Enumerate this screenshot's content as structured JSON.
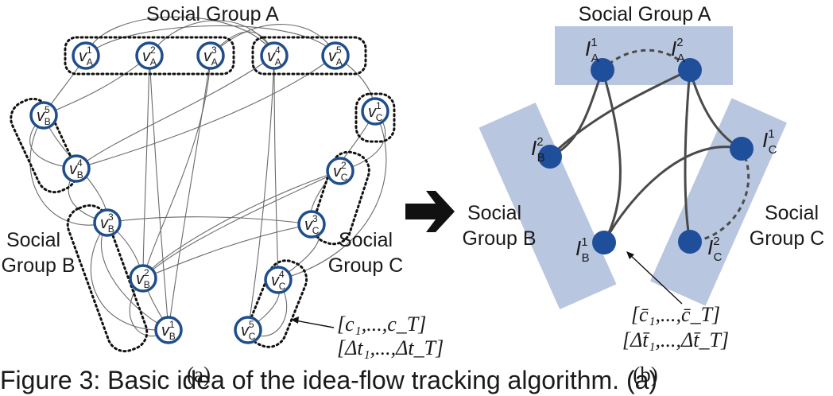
{
  "panel_a": {
    "group_a_label": "Social Group A",
    "group_b_label": [
      "Social",
      "Group B"
    ],
    "group_c_label": [
      "Social",
      "Group C"
    ],
    "node_base": "v",
    "nodes": [
      {
        "id": "A1",
        "sub": "A",
        "sup": "1"
      },
      {
        "id": "A2",
        "sub": "A",
        "sup": "2"
      },
      {
        "id": "A3",
        "sub": "A",
        "sup": "3"
      },
      {
        "id": "A4",
        "sub": "A",
        "sup": "4"
      },
      {
        "id": "A5",
        "sub": "A",
        "sup": "5"
      },
      {
        "id": "B5",
        "sub": "B",
        "sup": "5"
      },
      {
        "id": "B4",
        "sub": "B",
        "sup": "4"
      },
      {
        "id": "B3",
        "sub": "B",
        "sup": "3"
      },
      {
        "id": "B2",
        "sub": "B",
        "sup": "2"
      },
      {
        "id": "B1",
        "sub": "B",
        "sup": "1"
      },
      {
        "id": "C1",
        "sub": "C",
        "sup": "1"
      },
      {
        "id": "C2",
        "sub": "C",
        "sup": "2"
      },
      {
        "id": "C3",
        "sub": "C",
        "sup": "3"
      },
      {
        "id": "C4",
        "sub": "C",
        "sup": "4"
      },
      {
        "id": "C5",
        "sub": "C",
        "sup": "5"
      }
    ],
    "annotation": [
      "[c₁,...,c_T]",
      "[Δt₁,...,Δt_T]"
    ],
    "label": "(a)"
  },
  "panel_b": {
    "group_a_label": "Social Group A",
    "group_b_label": [
      "Social",
      "Group B"
    ],
    "group_c_label": [
      "Social",
      "Group C"
    ],
    "node_base": "I",
    "nodes": [
      {
        "id": "IA1",
        "sub": "A",
        "sup": "1"
      },
      {
        "id": "IA2",
        "sub": "A",
        "sup": "2"
      },
      {
        "id": "IB2",
        "sub": "B",
        "sup": "2"
      },
      {
        "id": "IB1",
        "sub": "B",
        "sup": "1"
      },
      {
        "id": "IC1",
        "sub": "C",
        "sup": "1"
      },
      {
        "id": "IC2",
        "sub": "C",
        "sup": "2"
      }
    ],
    "annotation": [
      "[c̄₁,...,c̄_T]",
      "[Δt̄₁,...,Δt̄_T]"
    ],
    "label": "(b)"
  },
  "caption": "Figure 3: Basic idea of the idea-flow tracking algorithm. (a)",
  "colors": {
    "node_ring": "#1f4e8a",
    "node_fill_b": "#1f4e9a",
    "group_box": "#b9c6e0",
    "edge": "#555555"
  }
}
